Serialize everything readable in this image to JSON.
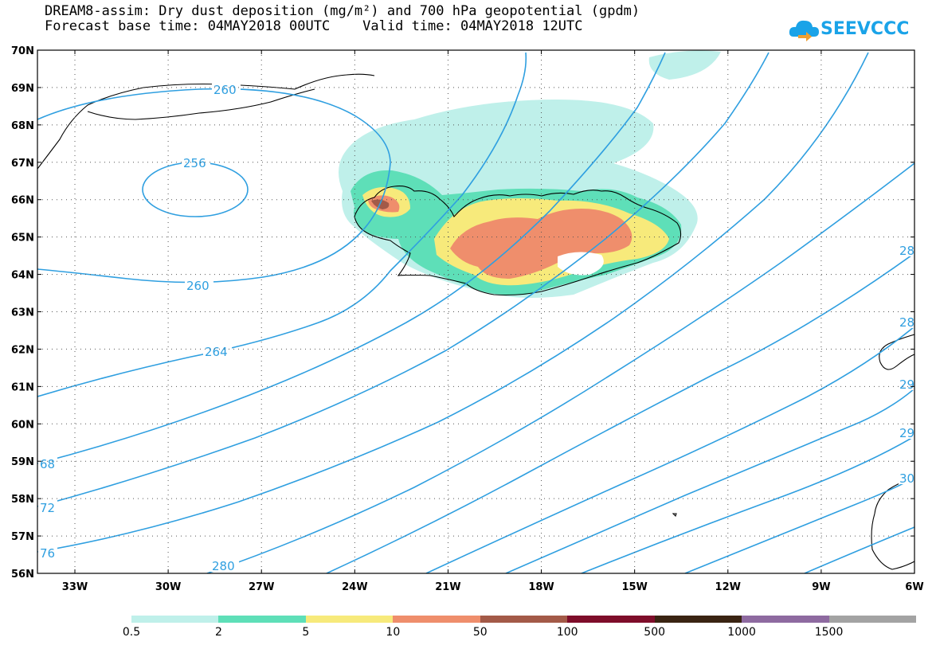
{
  "title": {
    "line1": "DREAM8-assim: Dry dust deposition (mg/m²) and 700 hPa geopotential (gpdm)",
    "line2": "Forecast base time: 04MAY2018 00UTC    Valid time: 04MAY2018 12UTC"
  },
  "logo": {
    "text": "SEEVCCC",
    "icon": "cloud-icon",
    "color": "#1aa3e8"
  },
  "map": {
    "region": "Iceland and North Atlantic",
    "lat_labels": [
      "70N",
      "69N",
      "68N",
      "67N",
      "66N",
      "65N",
      "64N",
      "63N",
      "62N",
      "61N",
      "60N",
      "59N",
      "58N",
      "57N",
      "56N"
    ],
    "lon_labels": [
      "33W",
      "30W",
      "27W",
      "24W",
      "21W",
      "18W",
      "15W",
      "12W",
      "9W",
      "6W"
    ],
    "grid": "dotted",
    "contour_color": "#2f9fe0",
    "contour_labels": [
      "260",
      "256",
      "260",
      "264",
      "280",
      "68",
      "72",
      "76",
      "28",
      "28",
      "29",
      "29",
      "30"
    ]
  },
  "legend": {
    "colors": [
      "#bff0ea",
      "#5edfb8",
      "#f7ea7b",
      "#ef8e6c",
      "#a35a48",
      "#7e0d2a",
      "#3a2412",
      "#8e6aa0",
      "#a3a3a3"
    ],
    "labels": [
      "0.5",
      "2",
      "5",
      "10",
      "50",
      "100",
      "500",
      "1000",
      "1500"
    ]
  }
}
